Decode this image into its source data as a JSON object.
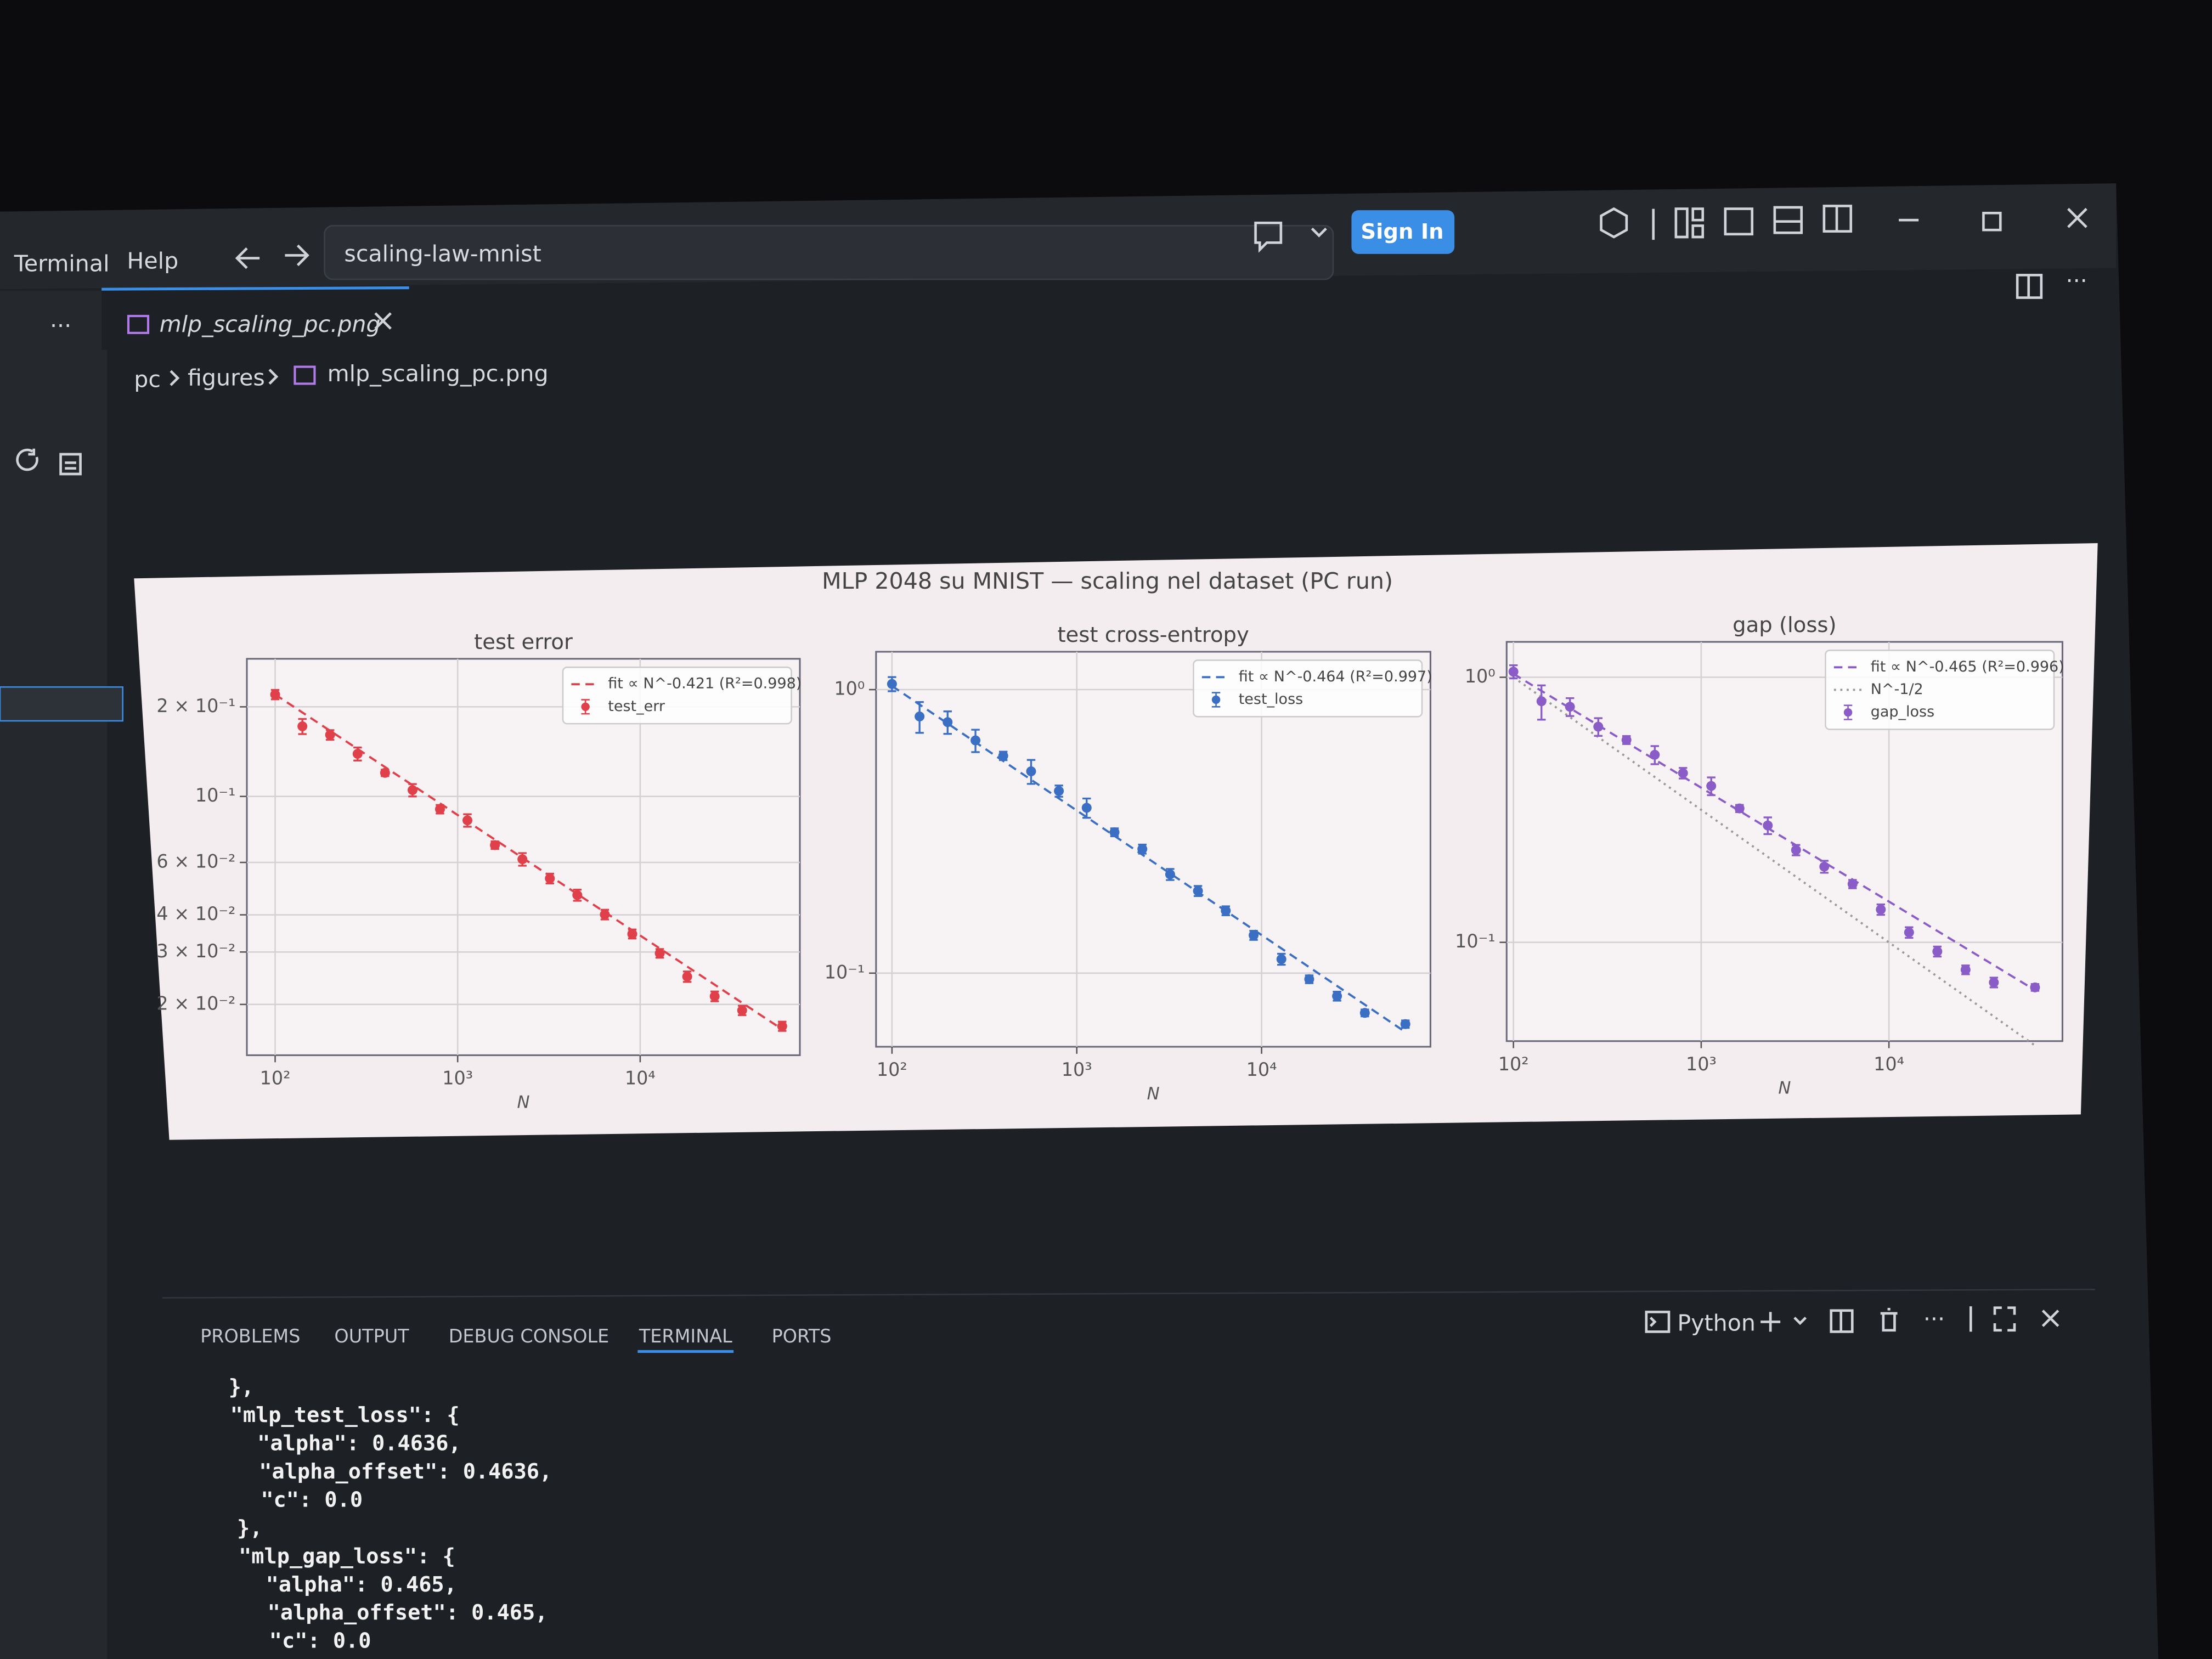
{
  "menu": [
    "Terminal",
    "Help"
  ],
  "search": "scaling-law-mnist",
  "sign_in": "Sign In",
  "tab": "mlp_scaling_pc.png",
  "breadcrumb": [
    "pc",
    "figures",
    "mlp_scaling_pc.png"
  ],
  "figure_title": "MLP 2048 su MNIST — scaling nel dataset (PC run)",
  "chart_data": [
    {
      "type": "scatter",
      "title": "test error",
      "xlabel": "N",
      "log_x": true,
      "log_y": true,
      "grid": true,
      "legend": "upper right",
      "x": [
        100,
        141,
        200,
        283,
        400,
        566,
        800,
        1131,
        1600,
        2263,
        3200,
        4525,
        6400,
        9051,
        12800,
        18102,
        25600,
        36204,
        60000
      ],
      "xlim": [
        70,
        75000
      ],
      "xticks": [
        {
          "value": 100,
          "label": "10²"
        },
        {
          "value": 1000,
          "label": "10³"
        },
        {
          "value": 10000,
          "label": "10⁴"
        }
      ],
      "ylim": [
        0.0135,
        0.29
      ],
      "yticks": [
        {
          "value": 0.2,
          "label": "2 × 10⁻¹"
        },
        {
          "value": 0.1,
          "label": "10⁻¹"
        },
        {
          "value": 0.06,
          "label": "6 × 10⁻²"
        },
        {
          "value": 0.04,
          "label": "4 × 10⁻²"
        },
        {
          "value": 0.03,
          "label": "3 × 10⁻²"
        },
        {
          "value": 0.02,
          "label": "2 × 10⁻²"
        }
      ],
      "series": [
        {
          "name": "fit ∝ N^-0.421 (R²=0.998)",
          "color": "#e0404a",
          "style": "dashed",
          "x": [
            100,
            60000
          ],
          "values": [
            0.22,
            0.0165
          ]
        },
        {
          "name": "test_err",
          "color": "#e0404a",
          "values": [
            0.22,
            0.172,
            0.161,
            0.139,
            0.12,
            0.105,
            0.0906,
            0.0831,
            0.0686,
            0.0615,
            0.053,
            0.0466,
            0.0401,
            0.0345,
            0.0297,
            0.0248,
            0.0213,
            0.0191,
            0.0169
          ],
          "errors": [
            0.008,
            0.01,
            0.006,
            0.007,
            0.003,
            0.005,
            0.003,
            0.004,
            0.002,
            0.003,
            0.002,
            0.002,
            0.0015,
            0.0012,
            0.001,
            0.001,
            0.0008,
            0.0007,
            0.0006
          ]
        }
      ]
    },
    {
      "type": "scatter",
      "title": "test cross-entropy",
      "xlabel": "N",
      "log_x": true,
      "log_y": true,
      "grid": true,
      "legend": "upper right",
      "x": [
        100,
        141,
        200,
        283,
        400,
        566,
        800,
        1131,
        1600,
        2263,
        3200,
        4525,
        6400,
        9051,
        12800,
        18102,
        25600,
        36204,
        60000
      ],
      "xlim": [
        82,
        82000
      ],
      "xticks": [
        {
          "value": 100,
          "label": "10²"
        },
        {
          "value": 1000,
          "label": "10³"
        },
        {
          "value": 10000,
          "label": "10⁴"
        }
      ],
      "ylim": [
        0.055,
        1.36
      ],
      "yticks": [
        {
          "value": 1,
          "label": "10⁰"
        },
        {
          "value": 0.1,
          "label": "10⁻¹"
        }
      ],
      "series": [
        {
          "name": "fit ∝ N^-0.464 (R²=0.997)",
          "color": "#3a6fc4",
          "style": "dashed",
          "x": [
            100,
            60000
          ],
          "values": [
            1.03,
            0.062
          ]
        },
        {
          "name": "test_loss",
          "color": "#3a6fc4",
          "values": [
            1.047,
            0.804,
            0.768,
            0.662,
            0.584,
            0.515,
            0.439,
            0.383,
            0.314,
            0.274,
            0.223,
            0.195,
            0.166,
            0.136,
            0.112,
            0.0952,
            0.083,
            0.0724,
            0.0661
          ],
          "errors": [
            0.06,
            0.1,
            0.07,
            0.06,
            0.02,
            0.05,
            0.02,
            0.03,
            0.01,
            0.01,
            0.01,
            0.008,
            0.006,
            0.005,
            0.005,
            0.003,
            0.003,
            0.002,
            0.002
          ]
        }
      ]
    },
    {
      "type": "scatter",
      "title": "gap (loss)",
      "xlabel": "N",
      "log_x": true,
      "log_y": true,
      "grid": true,
      "legend": "upper right",
      "x": [
        100,
        141,
        200,
        283,
        400,
        566,
        800,
        1131,
        1600,
        2263,
        3200,
        4525,
        6400,
        9051,
        12800,
        18102,
        25600,
        36204,
        60000
      ],
      "xlim": [
        92,
        84000
      ],
      "xticks": [
        {
          "value": 100,
          "label": "10²"
        },
        {
          "value": 1000,
          "label": "10³"
        },
        {
          "value": 10000,
          "label": "10⁴"
        }
      ],
      "ylim": [
        0.0424,
        1.36
      ],
      "yticks": [
        {
          "value": 1,
          "label": "10⁰"
        },
        {
          "value": 0.1,
          "label": "10⁻¹"
        }
      ],
      "series": [
        {
          "name": "fit ∝ N^-0.465 (R²=0.996)",
          "color": "#8a5cc8",
          "style": "dashed",
          "x": [
            100,
            60000
          ],
          "values": [
            1.03,
            0.066
          ]
        },
        {
          "name": "N^-1/2",
          "color": "#999999",
          "style": "dotted",
          "x": [
            100,
            60000
          ],
          "values": [
            1.0,
            0.0408
          ]
        },
        {
          "name": "gap_loss",
          "color": "#8a5cc8",
          "values": [
            1.05,
            0.812,
            0.774,
            0.651,
            0.58,
            0.51,
            0.435,
            0.389,
            0.32,
            0.276,
            0.223,
            0.193,
            0.166,
            0.133,
            0.109,
            0.0924,
            0.0788,
            0.0706,
            0.0676
          ],
          "errors": [
            0.06,
            0.12,
            0.06,
            0.05,
            0.02,
            0.04,
            0.02,
            0.03,
            0.01,
            0.02,
            0.01,
            0.01,
            0.006,
            0.006,
            0.005,
            0.004,
            0.003,
            0.003,
            0.002
          ]
        }
      ]
    }
  ],
  "panel": {
    "tabs": [
      "PROBLEMS",
      "OUTPUT",
      "DEBUG CONSOLE",
      "TERMINAL",
      "PORTS"
    ],
    "active_tab": 3,
    "shell": "Python"
  },
  "terminal": [
    "},",
    "\"mlp_test_loss\": {",
    "  \"alpha\": 0.4636,",
    "  \"alpha_offset\": 0.4636,",
    "  \"c\": 0.0",
    "},",
    "\"mlp_gap_loss\": {",
    "  \"alpha\": 0.465,",
    "  \"alpha_offset\": 0.465,",
    "  \"c\": 0.0"
  ]
}
